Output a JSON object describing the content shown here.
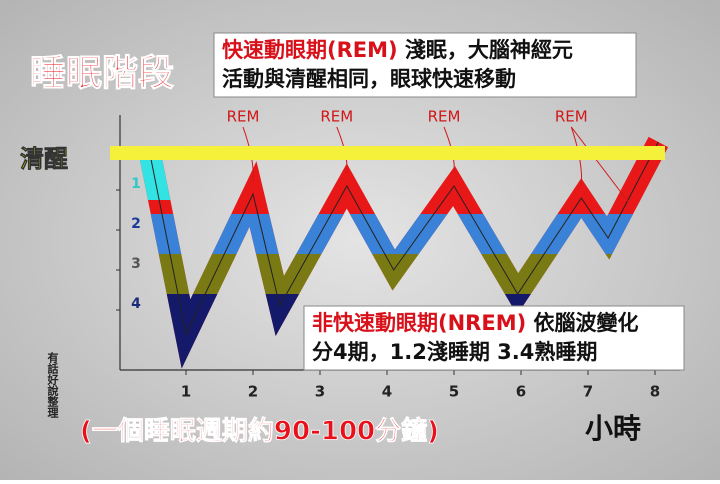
{
  "chart_data": {
    "type": "line",
    "title": "睡眠階段",
    "note_rem": {
      "term": "快速動眼期(REM)",
      "line1_rest": " 淺眠，大腦神經元",
      "line2": "活動與清醒相同，眼球快速移動"
    },
    "note_nrem": {
      "term": "非快速動眼期(NREM)",
      "line1_rest": " 依腦波變化",
      "line2": "分4期，1.2淺睡期 3.4熟睡期"
    },
    "awake_label": "清醒",
    "rem_labels": [
      "REM",
      "REM",
      "REM",
      "REM"
    ],
    "footnote": "(一個睡眠週期約90-100分鐘)",
    "x_label": "小時",
    "watermark": "有話好說整理",
    "x": [
      0.45,
      1.0,
      2.0,
      2.4,
      3.4,
      4.1,
      5.0,
      5.95,
      6.9,
      7.3,
      8.05
    ],
    "values": [
      0,
      4.6,
      1.1,
      3.9,
      0.9,
      3.0,
      0.9,
      3.6,
      1.2,
      2.2,
      -0.2
    ],
    "xlim": [
      0,
      8.5
    ],
    "ylim": [
      -0.5,
      5.5
    ],
    "xticks": [
      1,
      2,
      3,
      4,
      5,
      6,
      7,
      8
    ],
    "yticks": [
      1,
      2,
      3,
      4
    ]
  }
}
